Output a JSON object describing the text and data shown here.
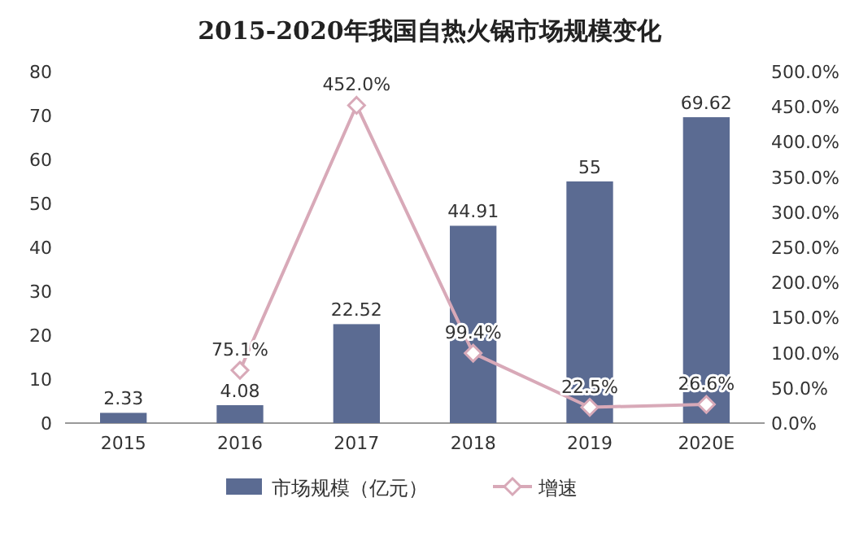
{
  "chart_data": {
    "type": "bar",
    "title": "2015-2020年我国自热火锅市场规模变化",
    "categories": [
      "2015",
      "2016",
      "2017",
      "2018",
      "2019",
      "2020E"
    ],
    "series": [
      {
        "name": "市场规模（亿元）",
        "color": "#5b6b92",
        "values": [
          2.33,
          4.08,
          22.52,
          44.91,
          55,
          69.62
        ],
        "value_labels": [
          "2.33",
          "4.08",
          "22.52",
          "44.91",
          "55",
          "69.62"
        ]
      },
      {
        "name": "增速",
        "type": "line",
        "axis": "y2",
        "color": "#d8a9b8",
        "marker": "diamond",
        "values": [
          null,
          75.1,
          452.0,
          99.4,
          22.5,
          26.6
        ],
        "value_labels": [
          null,
          "75.1%",
          "452.0%",
          "99.4%",
          "22.5%",
          "26.6%"
        ]
      }
    ],
    "ylim": [
      0,
      80
    ],
    "yticks": [
      0,
      10,
      20,
      30,
      40,
      50,
      60,
      70,
      80
    ],
    "y2lim": [
      0,
      500
    ],
    "y2ticks": [
      {
        "value": 0,
        "label": "0.0%"
      },
      {
        "value": 50,
        "label": "50.0%"
      },
      {
        "value": 100,
        "label": "100.0%"
      },
      {
        "value": 150,
        "label": "150.0%"
      },
      {
        "value": 200,
        "label": "200.0%"
      },
      {
        "value": 250,
        "label": "250.0%"
      },
      {
        "value": 300,
        "label": "300.0%"
      },
      {
        "value": 350,
        "label": "350.0%"
      },
      {
        "value": 400,
        "label": "400.0%"
      },
      {
        "value": 450,
        "label": "450.0%"
      },
      {
        "value": 500,
        "label": "500.0%"
      }
    ],
    "grid": false,
    "legend": "bottom"
  }
}
